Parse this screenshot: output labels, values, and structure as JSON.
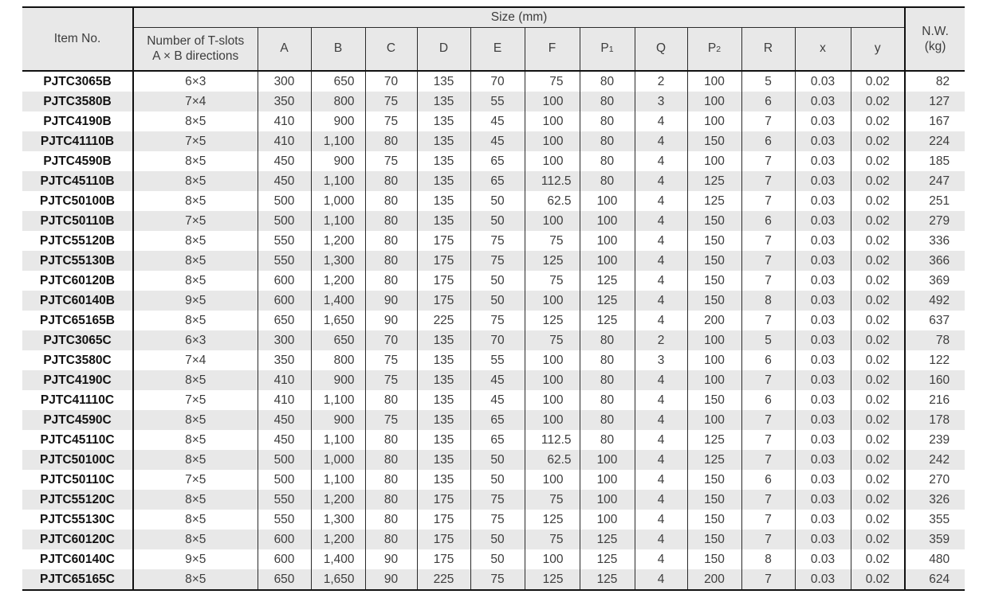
{
  "colors": {
    "header_bg": "#e8e8e8",
    "stripe_bg": "#e8e8e8",
    "border": "#111111",
    "text": "#3d3d3d"
  },
  "table": {
    "header": {
      "item_no": "Item No.",
      "size_group": "Size (mm)",
      "tslots": [
        "Number of T-slots",
        "A × B directions"
      ],
      "size_columns": [
        "A",
        "B",
        "C",
        "D",
        "E",
        "F",
        "P1",
        "Q",
        "P2",
        "R",
        "x",
        "y"
      ],
      "nw": [
        "N.W.",
        "(kg)"
      ]
    },
    "rows": [
      [
        "PJTC3065B",
        "6×3",
        "300",
        "650",
        "70",
        "135",
        "70",
        "75",
        "80",
        "2",
        "100",
        "5",
        "0.03",
        "0.02",
        "82"
      ],
      [
        "PJTC3580B",
        "7×4",
        "350",
        "800",
        "75",
        "135",
        "55",
        "100",
        "80",
        "3",
        "100",
        "6",
        "0.03",
        "0.02",
        "127"
      ],
      [
        "PJTC4190B",
        "8×5",
        "410",
        "900",
        "75",
        "135",
        "45",
        "100",
        "80",
        "4",
        "100",
        "7",
        "0.03",
        "0.02",
        "167"
      ],
      [
        "PJTC41110B",
        "7×5",
        "410",
        "1,100",
        "80",
        "135",
        "45",
        "100",
        "80",
        "4",
        "150",
        "6",
        "0.03",
        "0.02",
        "224"
      ],
      [
        "PJTC4590B",
        "8×5",
        "450",
        "900",
        "75",
        "135",
        "65",
        "100",
        "80",
        "4",
        "100",
        "7",
        "0.03",
        "0.02",
        "185"
      ],
      [
        "PJTC45110B",
        "8×5",
        "450",
        "1,100",
        "80",
        "135",
        "65",
        "112.5",
        "80",
        "4",
        "125",
        "7",
        "0.03",
        "0.02",
        "247"
      ],
      [
        "PJTC50100B",
        "8×5",
        "500",
        "1,000",
        "80",
        "135",
        "50",
        "62.5",
        "100",
        "4",
        "125",
        "7",
        "0.03",
        "0.02",
        "251"
      ],
      [
        "PJTC50110B",
        "7×5",
        "500",
        "1,100",
        "80",
        "135",
        "50",
        "100",
        "100",
        "4",
        "150",
        "6",
        "0.03",
        "0.02",
        "279"
      ],
      [
        "PJTC55120B",
        "8×5",
        "550",
        "1,200",
        "80",
        "175",
        "75",
        "75",
        "100",
        "4",
        "150",
        "7",
        "0.03",
        "0.02",
        "336"
      ],
      [
        "PJTC55130B",
        "8×5",
        "550",
        "1,300",
        "80",
        "175",
        "75",
        "125",
        "100",
        "4",
        "150",
        "7",
        "0.03",
        "0.02",
        "366"
      ],
      [
        "PJTC60120B",
        "8×5",
        "600",
        "1,200",
        "80",
        "175",
        "50",
        "75",
        "125",
        "4",
        "150",
        "7",
        "0.03",
        "0.02",
        "369"
      ],
      [
        "PJTC60140B",
        "9×5",
        "600",
        "1,400",
        "90",
        "175",
        "50",
        "100",
        "125",
        "4",
        "150",
        "8",
        "0.03",
        "0.02",
        "492"
      ],
      [
        "PJTC65165B",
        "8×5",
        "650",
        "1,650",
        "90",
        "225",
        "75",
        "125",
        "125",
        "4",
        "200",
        "7",
        "0.03",
        "0.02",
        "637"
      ],
      [
        "PJTC3065C",
        "6×3",
        "300",
        "650",
        "70",
        "135",
        "70",
        "75",
        "80",
        "2",
        "100",
        "5",
        "0.03",
        "0.02",
        "78"
      ],
      [
        "PJTC3580C",
        "7×4",
        "350",
        "800",
        "75",
        "135",
        "55",
        "100",
        "80",
        "3",
        "100",
        "6",
        "0.03",
        "0.02",
        "122"
      ],
      [
        "PJTC4190C",
        "8×5",
        "410",
        "900",
        "75",
        "135",
        "45",
        "100",
        "80",
        "4",
        "100",
        "7",
        "0.03",
        "0.02",
        "160"
      ],
      [
        "PJTC41110C",
        "7×5",
        "410",
        "1,100",
        "80",
        "135",
        "45",
        "100",
        "80",
        "4",
        "150",
        "6",
        "0.03",
        "0.02",
        "216"
      ],
      [
        "PJTC4590C",
        "8×5",
        "450",
        "900",
        "75",
        "135",
        "65",
        "100",
        "80",
        "4",
        "100",
        "7",
        "0.03",
        "0.02",
        "178"
      ],
      [
        "PJTC45110C",
        "8×5",
        "450",
        "1,100",
        "80",
        "135",
        "65",
        "112.5",
        "80",
        "4",
        "125",
        "7",
        "0.03",
        "0.02",
        "239"
      ],
      [
        "PJTC50100C",
        "8×5",
        "500",
        "1,000",
        "80",
        "135",
        "50",
        "62.5",
        "100",
        "4",
        "125",
        "7",
        "0.03",
        "0.02",
        "242"
      ],
      [
        "PJTC50110C",
        "7×5",
        "500",
        "1,100",
        "80",
        "135",
        "50",
        "100",
        "100",
        "4",
        "150",
        "6",
        "0.03",
        "0.02",
        "270"
      ],
      [
        "PJTC55120C",
        "8×5",
        "550",
        "1,200",
        "80",
        "175",
        "75",
        "75",
        "100",
        "4",
        "150",
        "7",
        "0.03",
        "0.02",
        "326"
      ],
      [
        "PJTC55130C",
        "8×5",
        "550",
        "1,300",
        "80",
        "175",
        "75",
        "125",
        "100",
        "4",
        "150",
        "7",
        "0.03",
        "0.02",
        "355"
      ],
      [
        "PJTC60120C",
        "8×5",
        "600",
        "1,200",
        "80",
        "175",
        "50",
        "75",
        "125",
        "4",
        "150",
        "7",
        "0.03",
        "0.02",
        "359"
      ],
      [
        "PJTC60140C",
        "9×5",
        "600",
        "1,400",
        "90",
        "175",
        "50",
        "100",
        "125",
        "4",
        "150",
        "8",
        "0.03",
        "0.02",
        "480"
      ],
      [
        "PJTC65165C",
        "8×5",
        "650",
        "1,650",
        "90",
        "225",
        "75",
        "125",
        "125",
        "4",
        "200",
        "7",
        "0.03",
        "0.02",
        "624"
      ]
    ]
  }
}
